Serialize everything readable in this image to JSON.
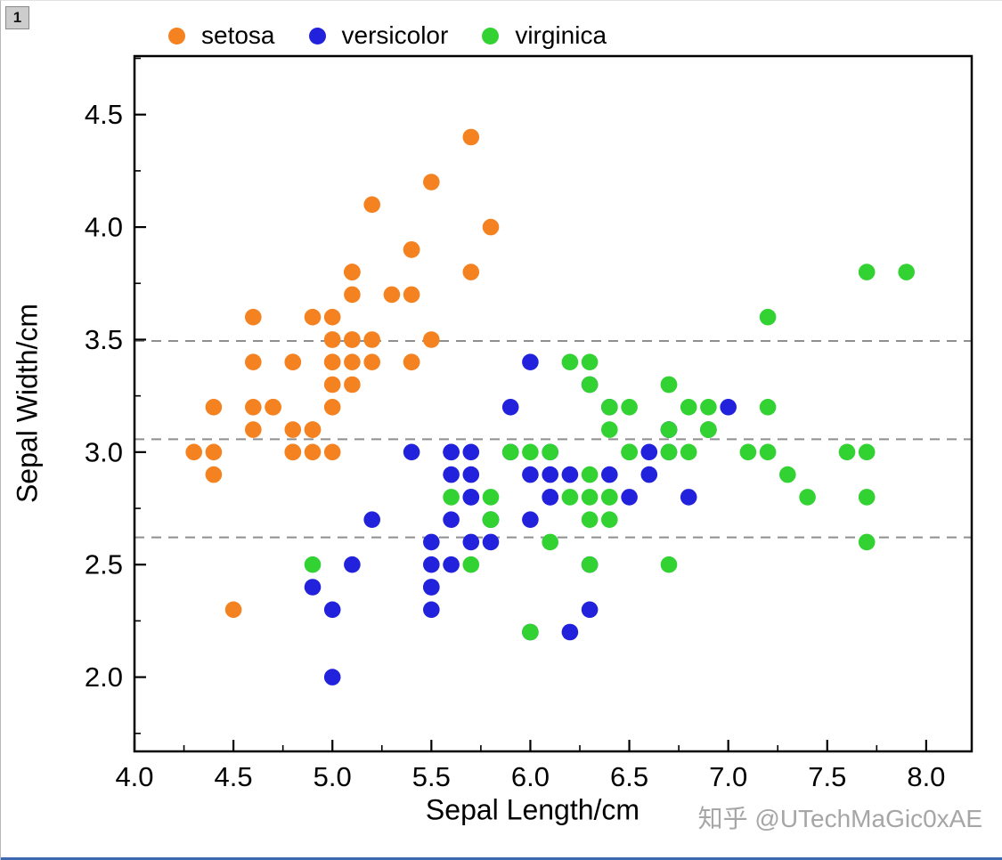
{
  "window": {
    "layer_badge": "1"
  },
  "watermark": {
    "text": "知乎 @UTechMaGic0xAE"
  },
  "chart_data": {
    "type": "scatter",
    "title": "",
    "xlabel": "Sepal Length/cm",
    "ylabel": "Sepal Width/cm",
    "xlim": [
      4.0,
      8.23
    ],
    "ylim": [
      1.67,
      4.76
    ],
    "x_ticks": [
      "4.0",
      "4.5",
      "5.0",
      "5.5",
      "6.0",
      "6.5",
      "7.0",
      "7.5",
      "8.0"
    ],
    "y_ticks": [
      "2.0",
      "2.5",
      "3.0",
      "3.5",
      "4.0",
      "4.5"
    ],
    "grid": false,
    "legend_position": "top",
    "reference_lines": {
      "values": [
        3.494,
        3.057,
        2.621
      ],
      "style": "dashed",
      "color": "#8f8f8f"
    },
    "series": [
      {
        "name": "setosa",
        "color": "#f58220",
        "points": [
          [
            5.1,
            3.5
          ],
          [
            4.9,
            3.0
          ],
          [
            4.7,
            3.2
          ],
          [
            4.6,
            3.1
          ],
          [
            5.0,
            3.6
          ],
          [
            5.4,
            3.9
          ],
          [
            4.6,
            3.4
          ],
          [
            5.0,
            3.4
          ],
          [
            4.4,
            2.9
          ],
          [
            4.9,
            3.1
          ],
          [
            5.4,
            3.7
          ],
          [
            4.8,
            3.4
          ],
          [
            4.8,
            3.0
          ],
          [
            4.3,
            3.0
          ],
          [
            5.8,
            4.0
          ],
          [
            5.7,
            4.4
          ],
          [
            5.4,
            3.9
          ],
          [
            5.1,
            3.5
          ],
          [
            5.7,
            3.8
          ],
          [
            5.1,
            3.8
          ],
          [
            5.4,
            3.4
          ],
          [
            5.1,
            3.7
          ],
          [
            4.6,
            3.6
          ],
          [
            5.1,
            3.3
          ],
          [
            4.8,
            3.4
          ],
          [
            5.0,
            3.0
          ],
          [
            5.0,
            3.4
          ],
          [
            5.2,
            3.5
          ],
          [
            5.2,
            3.4
          ],
          [
            4.7,
            3.2
          ],
          [
            4.8,
            3.1
          ],
          [
            5.4,
            3.4
          ],
          [
            5.2,
            4.1
          ],
          [
            5.5,
            4.2
          ],
          [
            4.9,
            3.1
          ],
          [
            5.0,
            3.2
          ],
          [
            5.5,
            3.5
          ],
          [
            4.9,
            3.6
          ],
          [
            4.4,
            3.0
          ],
          [
            5.1,
            3.4
          ],
          [
            5.0,
            3.5
          ],
          [
            4.5,
            2.3
          ],
          [
            4.4,
            3.2
          ],
          [
            5.0,
            3.5
          ],
          [
            5.1,
            3.8
          ],
          [
            4.8,
            3.0
          ],
          [
            5.1,
            3.8
          ],
          [
            4.6,
            3.2
          ],
          [
            5.3,
            3.7
          ],
          [
            5.0,
            3.3
          ]
        ]
      },
      {
        "name": "versicolor",
        "color": "#2222dd",
        "points": [
          [
            7.0,
            3.2
          ],
          [
            6.4,
            3.2
          ],
          [
            6.9,
            3.1
          ],
          [
            5.5,
            2.3
          ],
          [
            6.5,
            2.8
          ],
          [
            5.7,
            2.8
          ],
          [
            6.3,
            3.3
          ],
          [
            4.9,
            2.4
          ],
          [
            6.6,
            2.9
          ],
          [
            5.2,
            2.7
          ],
          [
            5.0,
            2.0
          ],
          [
            5.9,
            3.0
          ],
          [
            6.0,
            2.2
          ],
          [
            6.1,
            2.9
          ],
          [
            5.6,
            2.9
          ],
          [
            6.7,
            3.1
          ],
          [
            5.6,
            3.0
          ],
          [
            5.8,
            2.7
          ],
          [
            6.2,
            2.2
          ],
          [
            5.6,
            2.5
          ],
          [
            5.9,
            3.2
          ],
          [
            6.1,
            2.8
          ],
          [
            6.3,
            2.5
          ],
          [
            6.1,
            2.8
          ],
          [
            6.4,
            2.9
          ],
          [
            6.6,
            3.0
          ],
          [
            6.8,
            2.8
          ],
          [
            6.7,
            3.0
          ],
          [
            6.0,
            2.9
          ],
          [
            5.7,
            2.6
          ],
          [
            5.5,
            2.4
          ],
          [
            5.5,
            2.4
          ],
          [
            5.8,
            2.7
          ],
          [
            6.0,
            2.7
          ],
          [
            5.4,
            3.0
          ],
          [
            6.0,
            3.4
          ],
          [
            6.7,
            3.1
          ],
          [
            6.3,
            2.3
          ],
          [
            5.6,
            3.0
          ],
          [
            5.5,
            2.5
          ],
          [
            5.5,
            2.6
          ],
          [
            6.1,
            3.0
          ],
          [
            5.8,
            2.6
          ],
          [
            5.0,
            2.3
          ],
          [
            5.6,
            2.7
          ],
          [
            5.7,
            3.0
          ],
          [
            5.7,
            2.9
          ],
          [
            6.2,
            2.9
          ],
          [
            5.1,
            2.5
          ],
          [
            5.7,
            2.8
          ]
        ]
      },
      {
        "name": "virginica",
        "color": "#32d232",
        "points": [
          [
            6.3,
            3.3
          ],
          [
            5.8,
            2.7
          ],
          [
            7.1,
            3.0
          ],
          [
            6.3,
            2.9
          ],
          [
            6.5,
            3.0
          ],
          [
            7.6,
            3.0
          ],
          [
            4.9,
            2.5
          ],
          [
            7.3,
            2.9
          ],
          [
            6.7,
            2.5
          ],
          [
            7.2,
            3.6
          ],
          [
            6.5,
            3.2
          ],
          [
            6.4,
            2.7
          ],
          [
            6.8,
            3.0
          ],
          [
            5.7,
            2.5
          ],
          [
            5.8,
            2.8
          ],
          [
            6.4,
            3.2
          ],
          [
            6.5,
            3.0
          ],
          [
            7.7,
            3.8
          ],
          [
            7.7,
            2.6
          ],
          [
            6.0,
            2.2
          ],
          [
            6.9,
            3.2
          ],
          [
            5.6,
            2.8
          ],
          [
            7.7,
            2.8
          ],
          [
            6.3,
            2.7
          ],
          [
            6.7,
            3.3
          ],
          [
            7.2,
            3.2
          ],
          [
            6.2,
            2.8
          ],
          [
            6.1,
            3.0
          ],
          [
            6.4,
            2.8
          ],
          [
            7.2,
            3.0
          ],
          [
            7.4,
            2.8
          ],
          [
            7.9,
            3.8
          ],
          [
            6.4,
            2.8
          ],
          [
            6.3,
            2.8
          ],
          [
            6.1,
            2.6
          ],
          [
            7.7,
            3.0
          ],
          [
            6.3,
            3.4
          ],
          [
            6.4,
            3.1
          ],
          [
            6.0,
            3.0
          ],
          [
            6.9,
            3.1
          ],
          [
            6.7,
            3.1
          ],
          [
            6.9,
            3.1
          ],
          [
            5.8,
            2.7
          ],
          [
            6.8,
            3.2
          ],
          [
            6.7,
            3.3
          ],
          [
            6.7,
            3.0
          ],
          [
            6.3,
            2.5
          ],
          [
            6.5,
            3.0
          ],
          [
            6.2,
            3.4
          ],
          [
            5.9,
            3.0
          ]
        ]
      }
    ]
  }
}
